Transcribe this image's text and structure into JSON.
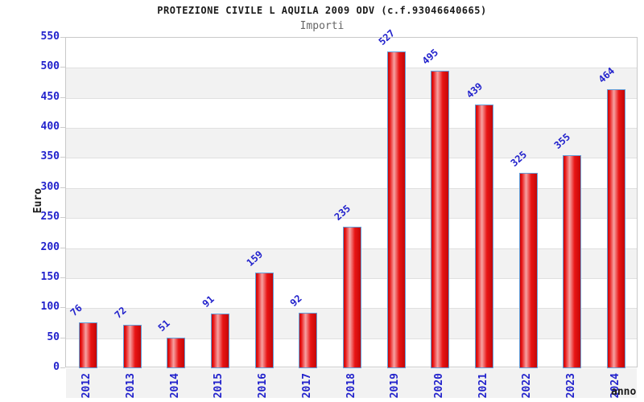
{
  "header": {
    "title": "PROTEZIONE CIVILE L AQUILA 2009 ODV (c.f.93046640665)",
    "subtitle": "Importi"
  },
  "chart_data": {
    "type": "bar",
    "title": "PROTEZIONE CIVILE L AQUILA 2009 ODV (c.f.93046640665)",
    "subtitle": "Importi",
    "xlabel": "anno",
    "ylabel": "Euro",
    "categories": [
      "2012",
      "2013",
      "2014",
      "2015",
      "2016",
      "2017",
      "2018",
      "2019",
      "2020",
      "2021",
      "2022",
      "2023",
      "2024"
    ],
    "values": [
      76,
      72,
      51,
      91,
      159,
      92,
      235,
      527,
      495,
      439,
      325,
      355,
      464
    ],
    "ylim": [
      0,
      550
    ],
    "ytick_step": 50,
    "yticks": [
      0,
      50,
      100,
      150,
      200,
      250,
      300,
      350,
      400,
      450,
      500,
      550
    ],
    "grid": true,
    "legend_position": "none",
    "colors": {
      "bar_fill_dark": "#c40808",
      "bar_fill_main": "#e81414",
      "bar_highlight": "#f6a2a2",
      "bar_border": "#63a0da",
      "value_text": "#2222cc",
      "tick_text": "#2222cc",
      "axis_title_text": "#1a1a1a",
      "title_text": "#1a1a1a",
      "subtitle_text": "#666666",
      "band": "#f2f2f2",
      "gridline": "#e0e0e0",
      "tick_mark": "#cccccc",
      "plot_border": "#c9c9c9"
    }
  }
}
